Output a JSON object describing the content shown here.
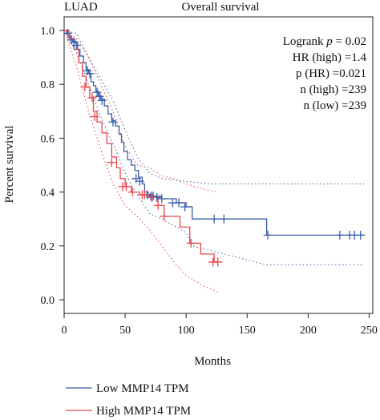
{
  "chart_data": {
    "type": "line",
    "cohort_label": "LUAD",
    "title": "Overall survival",
    "xlabel": "Months",
    "ylabel": "Percent survival",
    "xlim": [
      0,
      250
    ],
    "ylim": [
      0,
      1
    ],
    "x_ticks": [
      0,
      50,
      100,
      150,
      200,
      250
    ],
    "y_ticks": [
      0.0,
      0.2,
      0.4,
      0.6,
      0.8,
      1.0
    ],
    "grid": false,
    "legend_position": "bottom-left",
    "stats": [
      "Logrank p = 0.02",
      "HR (high) =1.4",
      "p (HR) =0.021",
      "n (high) =239",
      "n (low) =239"
    ],
    "series": [
      {
        "name": "Low MMP14 TPM",
        "color": "#3a5ea8",
        "steps": [
          [
            0,
            1.0
          ],
          [
            2,
            0.99
          ],
          [
            4,
            0.98
          ],
          [
            5,
            0.97
          ],
          [
            7,
            0.96
          ],
          [
            9,
            0.955
          ],
          [
            11,
            0.93
          ],
          [
            13,
            0.905
          ],
          [
            16,
            0.88
          ],
          [
            18,
            0.855
          ],
          [
            20,
            0.84
          ],
          [
            22,
            0.81
          ],
          [
            24,
            0.795
          ],
          [
            26,
            0.775
          ],
          [
            28,
            0.76
          ],
          [
            30,
            0.745
          ],
          [
            33,
            0.72
          ],
          [
            36,
            0.69
          ],
          [
            39,
            0.665
          ],
          [
            42,
            0.645
          ],
          [
            45,
            0.615
          ],
          [
            47,
            0.585
          ],
          [
            49,
            0.55
          ],
          [
            52,
            0.52
          ],
          [
            55,
            0.5
          ],
          [
            58,
            0.48
          ],
          [
            61,
            0.455
          ],
          [
            64,
            0.43
          ],
          [
            66,
            0.4
          ],
          [
            69,
            0.39
          ],
          [
            72,
            0.385
          ],
          [
            80,
            0.375
          ],
          [
            92,
            0.36
          ],
          [
            100,
            0.345
          ],
          [
            105,
            0.3
          ],
          [
            166,
            0.24
          ],
          [
            246,
            0.24
          ]
        ],
        "censors": [
          [
            3,
            0.99
          ],
          [
            6,
            0.965
          ],
          [
            8,
            0.955
          ],
          [
            10,
            0.945
          ],
          [
            19,
            0.85
          ],
          [
            21,
            0.84
          ],
          [
            27,
            0.77
          ],
          [
            29,
            0.755
          ],
          [
            31,
            0.74
          ],
          [
            40,
            0.66
          ],
          [
            59,
            0.45
          ],
          [
            62,
            0.44
          ],
          [
            68,
            0.39
          ],
          [
            71,
            0.385
          ],
          [
            73,
            0.385
          ],
          [
            76,
            0.38
          ],
          [
            80,
            0.375
          ],
          [
            89,
            0.36
          ],
          [
            94,
            0.36
          ],
          [
            99,
            0.345
          ],
          [
            123,
            0.3
          ],
          [
            131,
            0.3
          ],
          [
            167,
            0.24
          ],
          [
            226,
            0.24
          ],
          [
            234,
            0.24
          ],
          [
            238,
            0.24
          ],
          [
            243,
            0.24
          ]
        ],
        "ci_upper": [
          [
            0,
            1.0
          ],
          [
            10,
            0.99
          ],
          [
            20,
            0.9
          ],
          [
            30,
            0.82
          ],
          [
            40,
            0.74
          ],
          [
            50,
            0.63
          ],
          [
            60,
            0.53
          ],
          [
            70,
            0.47
          ],
          [
            80,
            0.45
          ],
          [
            100,
            0.44
          ],
          [
            120,
            0.43
          ],
          [
            166,
            0.43
          ],
          [
            246,
            0.43
          ]
        ],
        "ci_lower": [
          [
            0,
            1.0
          ],
          [
            10,
            0.92
          ],
          [
            20,
            0.8
          ],
          [
            30,
            0.68
          ],
          [
            40,
            0.58
          ],
          [
            50,
            0.47
          ],
          [
            60,
            0.39
          ],
          [
            70,
            0.32
          ],
          [
            80,
            0.3
          ],
          [
            100,
            0.25
          ],
          [
            105,
            0.2
          ],
          [
            166,
            0.13
          ],
          [
            246,
            0.13
          ]
        ]
      },
      {
        "name": "High MMP14 TPM",
        "color": "#e8474c",
        "steps": [
          [
            0,
            1.0
          ],
          [
            4,
            0.97
          ],
          [
            8,
            0.93
          ],
          [
            12,
            0.88
          ],
          [
            15,
            0.83
          ],
          [
            18,
            0.79
          ],
          [
            21,
            0.75
          ],
          [
            24,
            0.7
          ],
          [
            27,
            0.66
          ],
          [
            31,
            0.62
          ],
          [
            35,
            0.58
          ],
          [
            39,
            0.53
          ],
          [
            43,
            0.49
          ],
          [
            46,
            0.45
          ],
          [
            50,
            0.42
          ],
          [
            55,
            0.4
          ],
          [
            62,
            0.39
          ],
          [
            70,
            0.38
          ],
          [
            77,
            0.35
          ],
          [
            82,
            0.31
          ],
          [
            95,
            0.27
          ],
          [
            103,
            0.21
          ],
          [
            112,
            0.17
          ],
          [
            123,
            0.14
          ],
          [
            126,
            0.14
          ]
        ],
        "censors": [
          [
            17,
            0.79
          ],
          [
            23,
            0.75
          ],
          [
            25,
            0.68
          ],
          [
            39,
            0.51
          ],
          [
            48,
            0.42
          ],
          [
            51,
            0.42
          ],
          [
            56,
            0.4
          ],
          [
            64,
            0.39
          ],
          [
            66,
            0.39
          ],
          [
            72,
            0.38
          ],
          [
            77,
            0.35
          ],
          [
            82,
            0.31
          ],
          [
            104,
            0.21
          ],
          [
            122,
            0.14
          ],
          [
            126,
            0.14
          ]
        ],
        "ci_upper": [
          [
            0,
            1.0
          ],
          [
            10,
            0.97
          ],
          [
            20,
            0.9
          ],
          [
            30,
            0.8
          ],
          [
            40,
            0.7
          ],
          [
            50,
            0.57
          ],
          [
            60,
            0.5
          ],
          [
            70,
            0.49
          ],
          [
            80,
            0.46
          ],
          [
            90,
            0.45
          ],
          [
            100,
            0.43
          ],
          [
            115,
            0.41
          ],
          [
            126,
            0.4
          ]
        ],
        "ci_lower": [
          [
            0,
            1.0
          ],
          [
            10,
            0.87
          ],
          [
            20,
            0.7
          ],
          [
            30,
            0.56
          ],
          [
            40,
            0.43
          ],
          [
            50,
            0.35
          ],
          [
            60,
            0.31
          ],
          [
            70,
            0.26
          ],
          [
            80,
            0.2
          ],
          [
            90,
            0.14
          ],
          [
            100,
            0.09
          ],
          [
            115,
            0.05
          ],
          [
            126,
            0.03
          ]
        ]
      }
    ]
  }
}
